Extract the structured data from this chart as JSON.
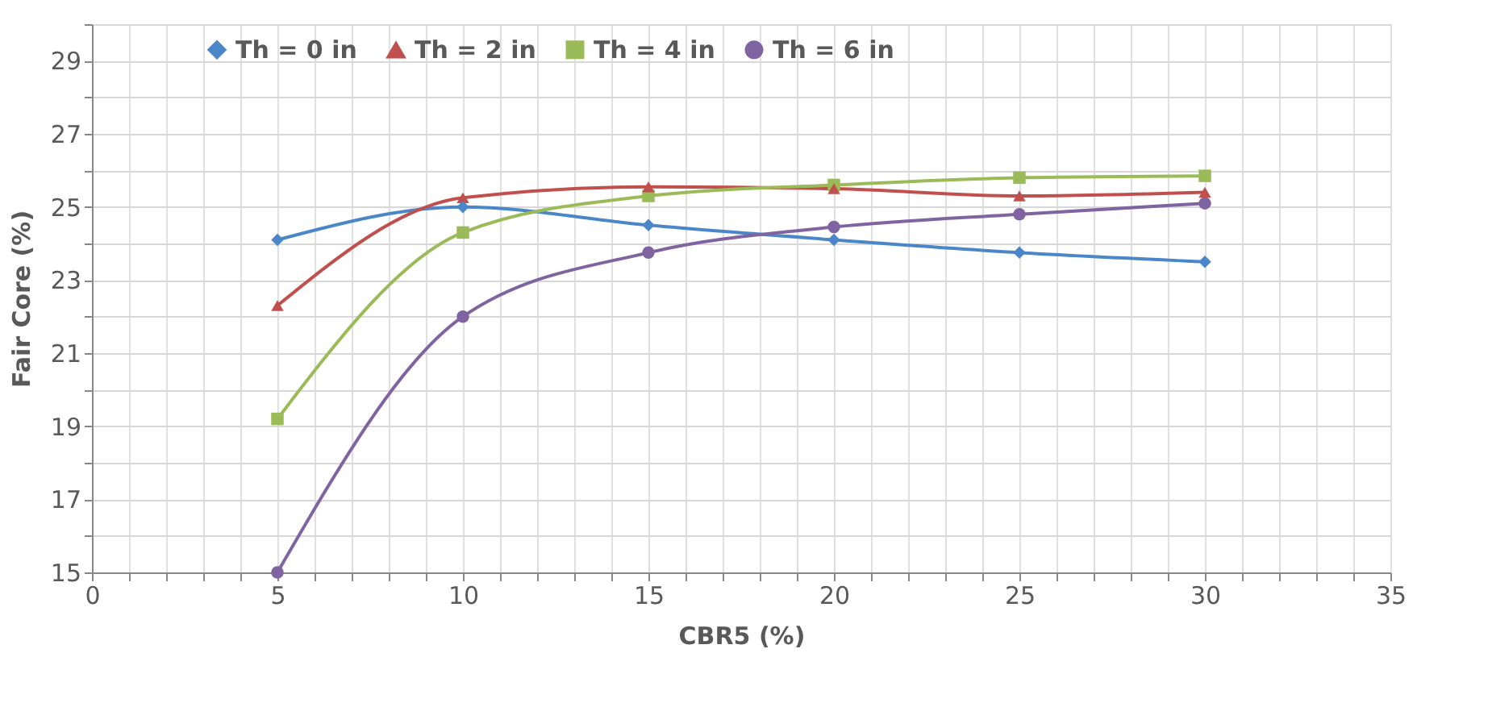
{
  "chart_data": {
    "type": "line",
    "xlabel": "CBR5 (%)",
    "ylabel": "Fair Core (%)",
    "x": [
      5,
      10,
      15,
      20,
      25,
      30
    ],
    "series": [
      {
        "name": "Th = 0 in",
        "color": "#4a86c8",
        "marker": "diamond",
        "values": [
          24.1,
          25.0,
          24.5,
          24.1,
          23.75,
          23.5
        ]
      },
      {
        "name": "Th = 2 in",
        "color": "#c0504d",
        "marker": "triangle",
        "values": [
          22.3,
          25.25,
          25.55,
          25.5,
          25.3,
          25.4
        ]
      },
      {
        "name": "Th = 4 in",
        "color": "#9bbb59",
        "marker": "square",
        "values": [
          19.2,
          24.3,
          25.3,
          25.6,
          25.8,
          25.85
        ]
      },
      {
        "name": "Th = 6 in",
        "color": "#8064a2",
        "marker": "circle",
        "values": [
          15.0,
          22.0,
          23.75,
          24.45,
          24.8,
          25.1
        ]
      }
    ],
    "xlim": [
      0,
      35
    ],
    "xticks": [
      0,
      {
        "value": 1,
        "label": null
      },
      {
        "value": 2,
        "label": null
      },
      {
        "value": 3,
        "label": null
      },
      {
        "value": 4,
        "label": null
      },
      5,
      {
        "value": 6,
        "label": null
      },
      {
        "value": 7,
        "label": null
      },
      {
        "value": 8,
        "label": null
      },
      {
        "value": 9,
        "label": null
      },
      10,
      {
        "value": 11,
        "label": null
      },
      {
        "value": 12,
        "label": null
      },
      {
        "value": 13,
        "label": null
      },
      {
        "value": 14,
        "label": null
      },
      15,
      {
        "value": 16,
        "label": null
      },
      {
        "value": 17,
        "label": null
      },
      {
        "value": 18,
        "label": null
      },
      {
        "value": 19,
        "label": null
      },
      20,
      {
        "value": 21,
        "label": null
      },
      {
        "value": 22,
        "label": null
      },
      {
        "value": 23,
        "label": null
      },
      {
        "value": 24,
        "label": null
      },
      25,
      {
        "value": 26,
        "label": null
      },
      {
        "value": 27,
        "label": null
      },
      {
        "value": 28,
        "label": null
      },
      {
        "value": 29,
        "label": null
      },
      30,
      {
        "value": 31,
        "label": null
      },
      {
        "value": 32,
        "label": null
      },
      {
        "value": 33,
        "label": null
      },
      {
        "value": 34,
        "label": null
      },
      35
    ],
    "ylim": [
      15,
      30
    ],
    "yticks": [
      15,
      {
        "value": 16,
        "label": null
      },
      17,
      {
        "value": 18,
        "label": null
      },
      19,
      {
        "value": 20,
        "label": null
      },
      21,
      {
        "value": 22,
        "label": null
      },
      23,
      {
        "value": 24,
        "label": null
      },
      25,
      {
        "value": 26,
        "label": null
      },
      27,
      {
        "value": 28,
        "label": null
      },
      29,
      {
        "value": 30,
        "label": null
      }
    ],
    "grid": true,
    "legend": "top",
    "line_style": "solid"
  }
}
